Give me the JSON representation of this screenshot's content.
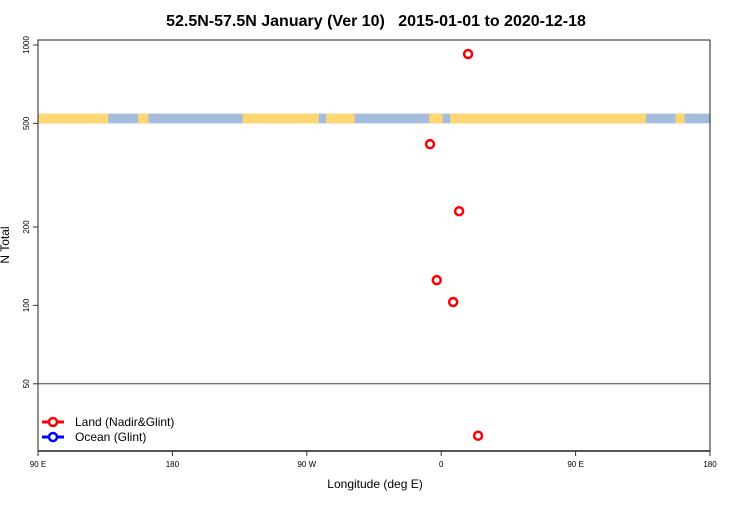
{
  "chart_data": {
    "type": "scatter",
    "title": "52.5N-57.5N January (Ver 10)   2015-01-01 to 2020-12-18",
    "xlabel": "Longitude (deg E)",
    "ylabel": "N Total",
    "x_ticks": [
      {
        "value": 90,
        "label": "90 E"
      },
      {
        "value": 180,
        "label": "180"
      },
      {
        "value": 270,
        "label": "90 W"
      },
      {
        "value": 360,
        "label": "0"
      },
      {
        "value": 450,
        "label": "90 E"
      },
      {
        "value": 540,
        "label": "180"
      }
    ],
    "xlim": [
      90,
      540
    ],
    "y_scale": "log",
    "ylim": [
      27.6,
      1045
    ],
    "y_ticks": [
      {
        "value": 1000,
        "label": "1000"
      },
      {
        "value": 500,
        "label": "500"
      },
      {
        "value": 200,
        "label": "200"
      },
      {
        "value": 100,
        "label": "100"
      },
      {
        "value": 50,
        "label": "50"
      }
    ],
    "reference_line_y": 50,
    "legend": {
      "placement": "bottom-left",
      "entries": [
        {
          "label": "Land (Nadir&Glint)",
          "color": "#ff0000"
        },
        {
          "label": "Ocean (Glint)",
          "color": "#0000ff"
        }
      ]
    },
    "series": [
      {
        "name": "Land (Nadir&Glint)",
        "color": "#ff0000",
        "points": [
          {
            "lon": 18,
            "n": 923
          },
          {
            "lon": -7.5,
            "n": 416
          },
          {
            "lon": 12,
            "n": 230
          },
          {
            "lon": -3,
            "n": 125
          },
          {
            "lon": 8,
            "n": 103
          },
          {
            "lon": 24.7,
            "n": 31.6
          }
        ]
      },
      {
        "name": "Ocean (Glint)",
        "color": "#0000ff",
        "points": []
      }
    ],
    "surface_strip": {
      "n_range": [
        500,
        545
      ],
      "land_color": "#ffd772",
      "ocean_color": "#a6bcdc",
      "land_segments_deg_e": [
        [
          90,
          137
        ],
        [
          157,
          164
        ],
        [
          227,
          278
        ],
        [
          283,
          302
        ],
        [
          352,
          361
        ],
        [
          366,
          497
        ],
        [
          517,
          523
        ]
      ]
    }
  }
}
